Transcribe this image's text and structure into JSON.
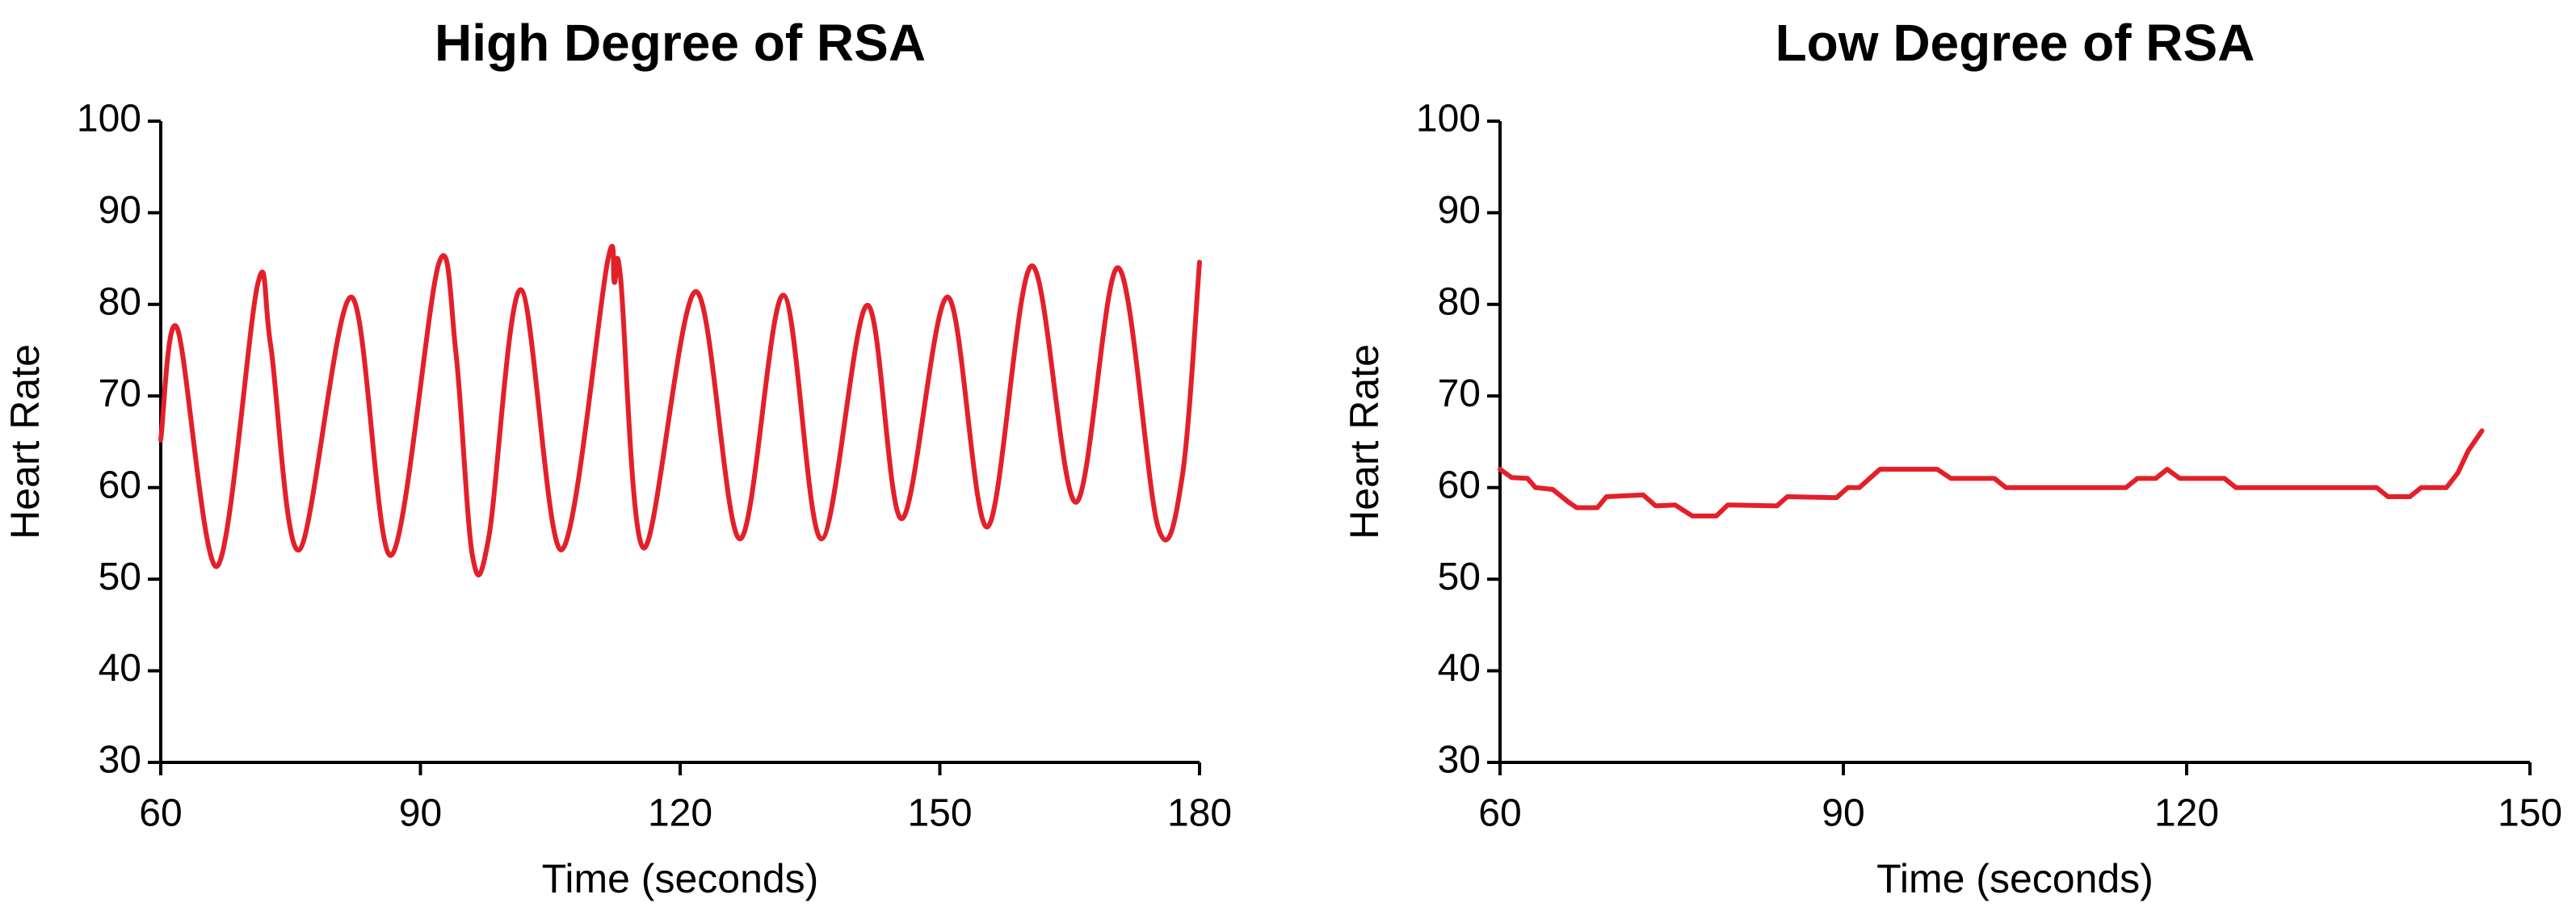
{
  "chart_data": [
    {
      "type": "line",
      "title": "High Degree of RSA",
      "xlabel": "Time (seconds)",
      "ylabel": "Heart Rate",
      "color": "#e3202a",
      "smooth": true,
      "x": [
        60,
        61.9,
        66.5,
        71.2,
        72.7,
        76,
        82,
        86.6,
        92.1,
        94.1,
        96,
        97.9,
        101.6,
        106.3,
        111.6,
        112.4,
        113.1,
        115.8,
        121.8,
        126.9,
        131.9,
        136.3,
        141.6,
        145.6,
        150.9,
        155.5,
        160.6,
        165.7,
        170.6,
        175.2,
        178,
        180
      ],
      "values": [
        65.2,
        77.4,
        51.4,
        82.2,
        75.5,
        53.2,
        80.8,
        52.6,
        84.4,
        74.7,
        52.6,
        54.6,
        81.6,
        53.2,
        84.6,
        82.4,
        83.1,
        53.4,
        81.4,
        54.4,
        81,
        54.4,
        79.9,
        56.6,
        80.8,
        55.7,
        84.2,
        58.4,
        84,
        55.7,
        61.2,
        84.6
      ],
      "xlim": [
        60,
        180
      ],
      "xticks": [
        60,
        90,
        120,
        150,
        180
      ],
      "ylim": [
        30,
        100
      ],
      "yticks": [
        30,
        40,
        50,
        60,
        70,
        80,
        90,
        100
      ]
    },
    {
      "type": "line",
      "title": "Low Degree of RSA",
      "xlabel": "Time (seconds)",
      "ylabel": "Heart Rate",
      "color": "#e3202a",
      "smooth": false,
      "x": [
        60,
        61,
        62.4,
        63.1,
        64.6,
        66,
        66.7,
        68.5,
        69.3,
        72.5,
        73.6,
        75.3,
        76.8,
        78.9,
        79.9,
        84.2,
        85.1,
        89.4,
        90.4,
        91.4,
        93.2,
        98.2,
        99.4,
        103.2,
        104.2,
        114.7,
        115.7,
        117.3,
        118.3,
        119.4,
        123.3,
        124.3,
        136.6,
        137.6,
        139.5,
        140.5,
        142.7,
        143.7,
        144.6,
        145.8
      ],
      "values": [
        62,
        61.1,
        61,
        60,
        59.8,
        58.4,
        57.8,
        57.8,
        59,
        59.2,
        58,
        58.1,
        56.9,
        56.9,
        58.1,
        58,
        59,
        58.9,
        60,
        60,
        62,
        62,
        61,
        61,
        60,
        60,
        61,
        61,
        62,
        61,
        61,
        60,
        60,
        59,
        59,
        60,
        60,
        61.6,
        64,
        66.2
      ],
      "xlim": [
        60,
        150
      ],
      "xticks": [
        60,
        90,
        120,
        150
      ],
      "ylim": [
        30,
        100
      ],
      "yticks": [
        30,
        40,
        50,
        60,
        70,
        80,
        90,
        100
      ]
    }
  ]
}
